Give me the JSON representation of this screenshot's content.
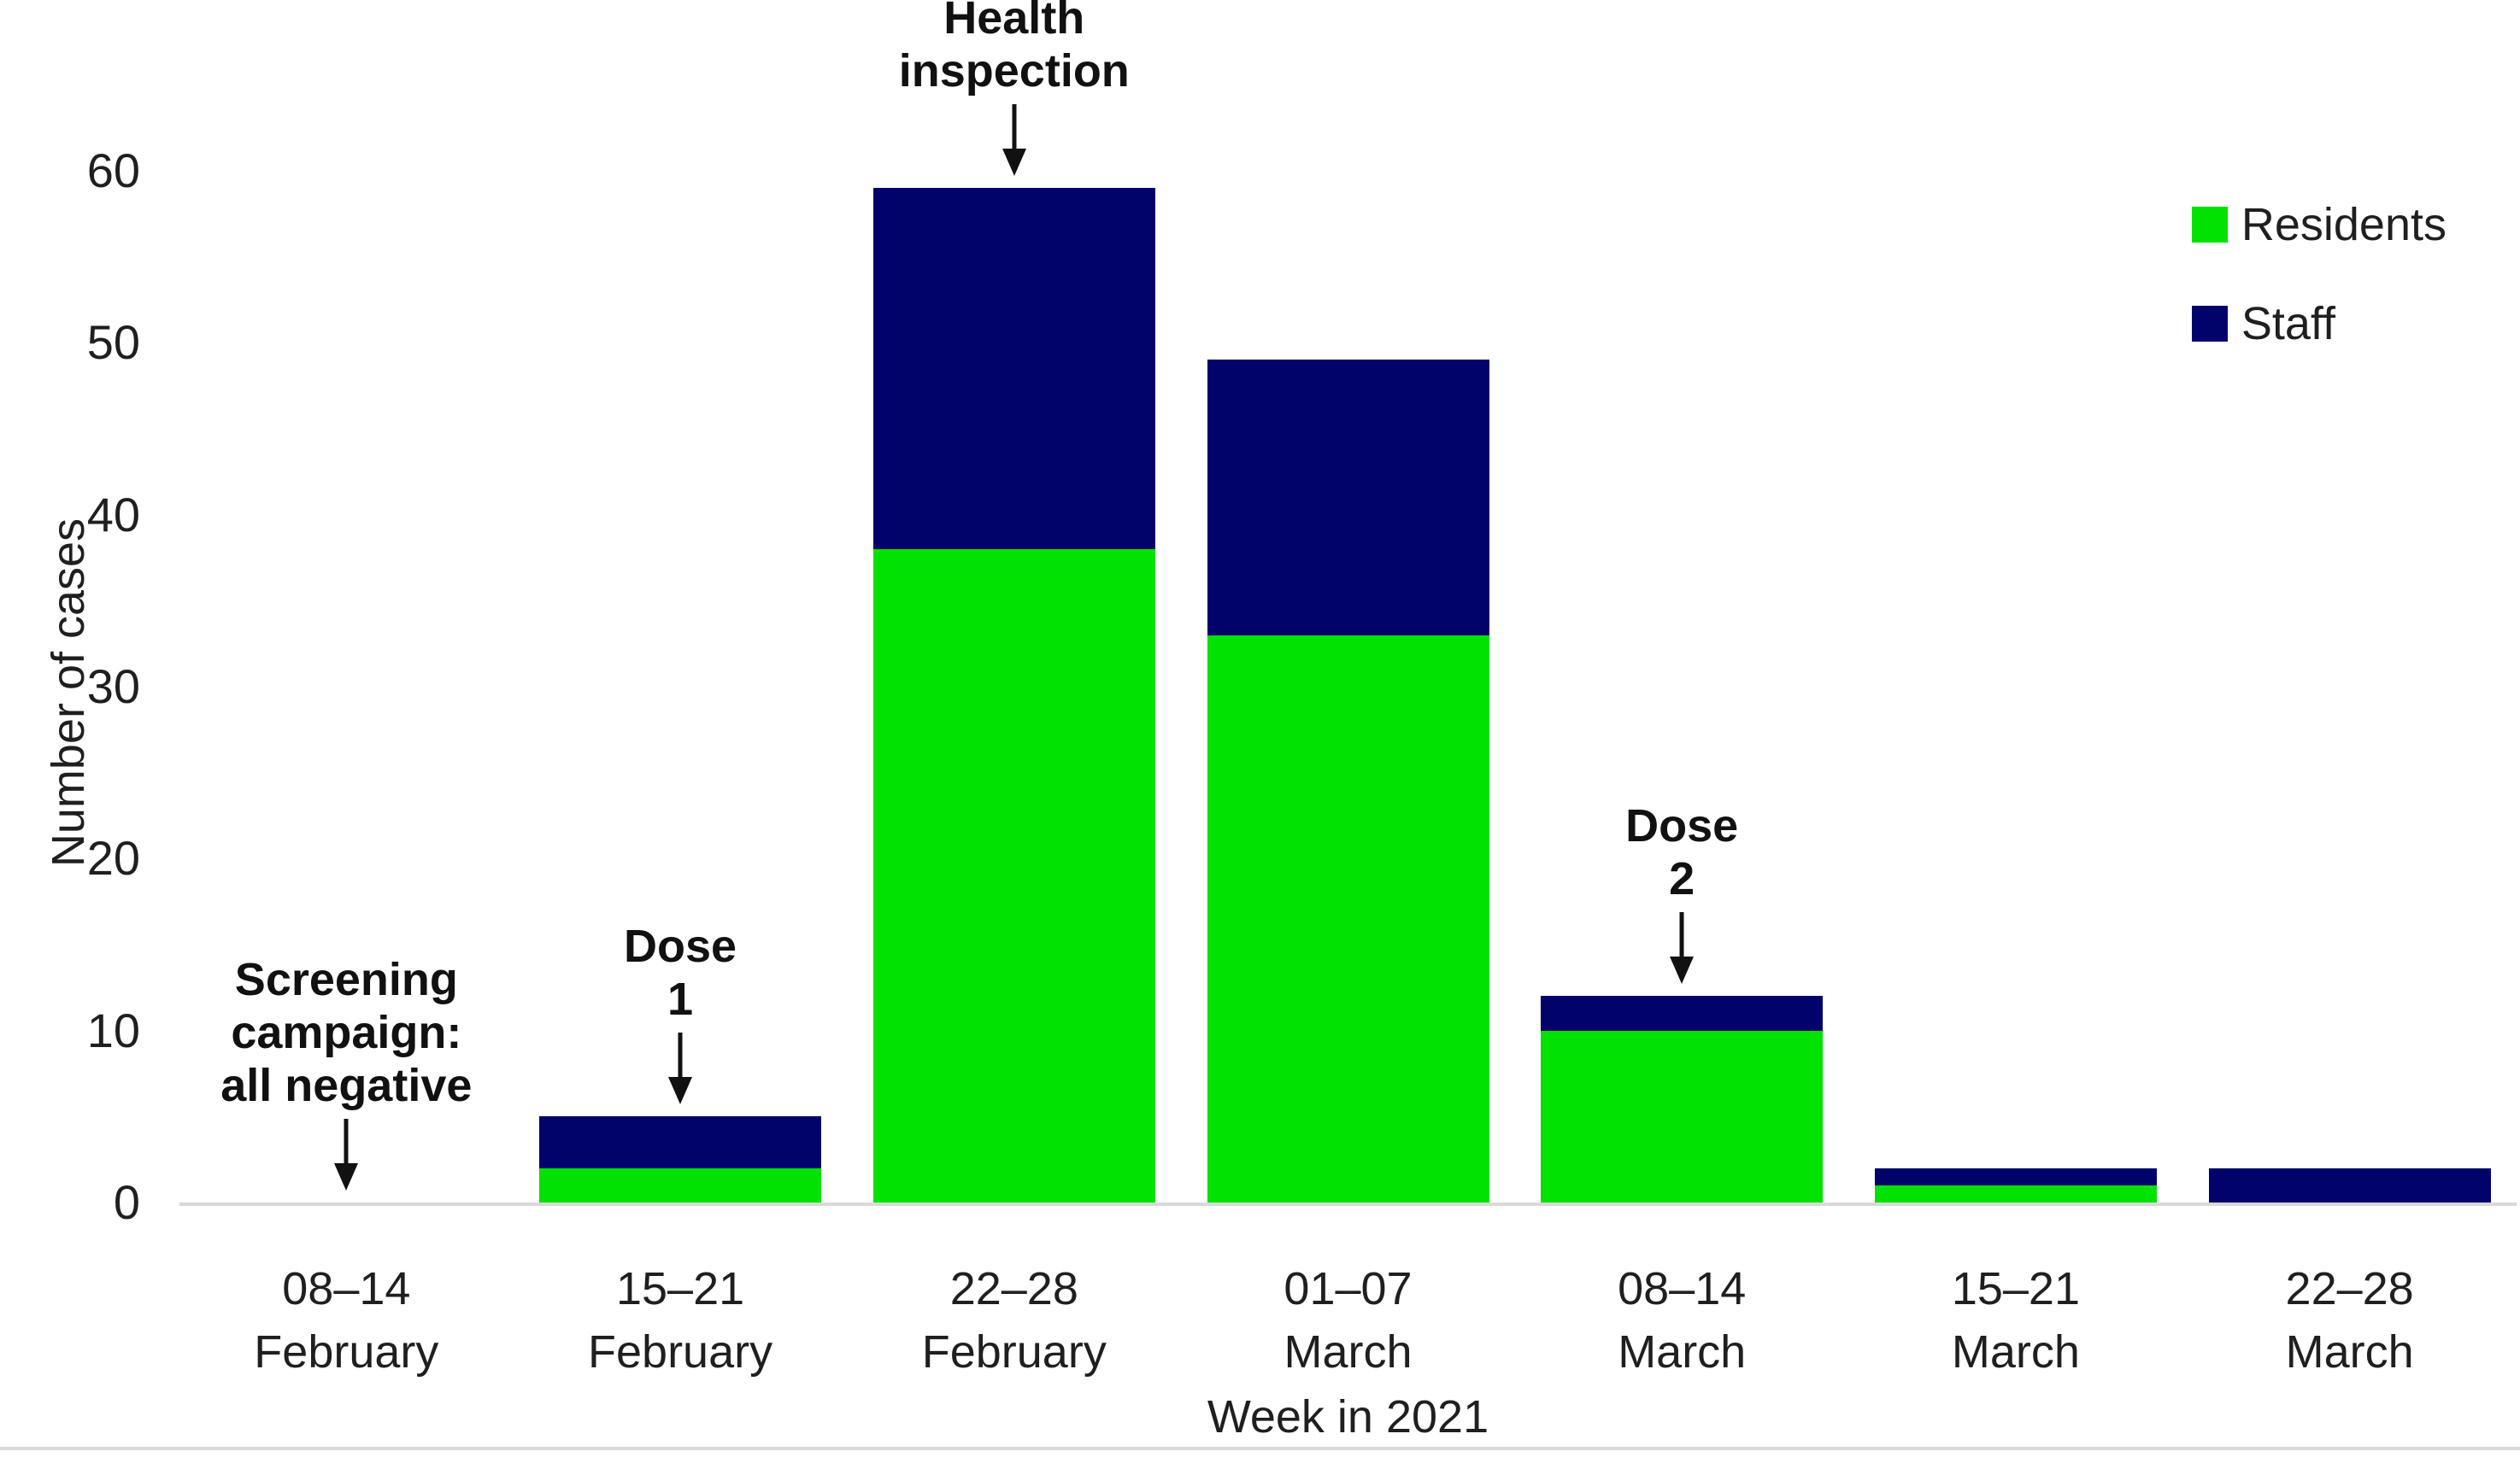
{
  "figure": {
    "background": "#ffffff",
    "text_color": "#1f1f1f",
    "axis_line_color": "#d9d9d9"
  },
  "chart_data": {
    "type": "bar",
    "stacked": true,
    "title": "",
    "xlabel": "Week in 2021",
    "ylabel": "Number of cases",
    "ylim": [
      0,
      60
    ],
    "yticks": [
      0,
      10,
      20,
      30,
      40,
      50,
      60
    ],
    "grid": false,
    "legend_position": "top-right",
    "categories": [
      "08–14 February",
      "15–21 February",
      "22–28 February",
      "01–07 March",
      "08–14 March",
      "15–21 March",
      "22–28 March"
    ],
    "category_lines": [
      [
        "08–14",
        "February"
      ],
      [
        "15–21",
        "February"
      ],
      [
        "22–28",
        "February"
      ],
      [
        "01–07",
        "March"
      ],
      [
        "08–14",
        "March"
      ],
      [
        "15–21",
        "March"
      ],
      [
        "22–28",
        "March"
      ]
    ],
    "series": [
      {
        "name": "Residents",
        "color": "#02E202",
        "values": [
          0,
          2,
          38,
          33,
          10,
          1,
          0
        ]
      },
      {
        "name": "Staff",
        "color": "#02036A",
        "values": [
          0,
          3,
          21,
          16,
          2,
          1,
          2
        ]
      }
    ],
    "totals": [
      0,
      5,
      59,
      49,
      12,
      2,
      2
    ],
    "annotations": [
      {
        "lines": [
          "Screening",
          "campaign:",
          "all negative"
        ],
        "category_index": 0
      },
      {
        "lines": [
          "Dose",
          "1"
        ],
        "category_index": 1
      },
      {
        "lines": [
          "Health",
          "inspection"
        ],
        "category_index": 2
      },
      {
        "lines": [
          "Dose",
          "2"
        ],
        "category_index": 4
      }
    ]
  }
}
